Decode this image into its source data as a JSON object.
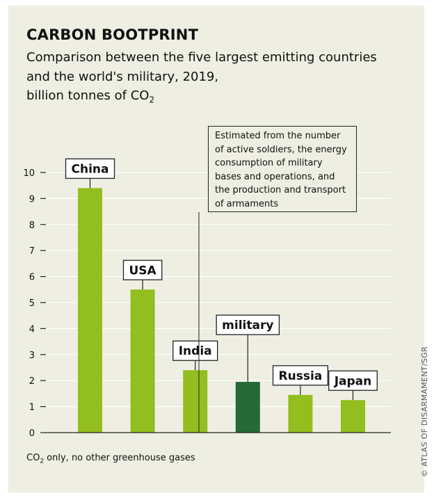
{
  "title": "CARBON BOOTPRINT",
  "subtitle_line1": "Comparison between the five largest emitting countries",
  "subtitle_line2": "and the world's military, 2019,",
  "subtitle_line3": "billion tonnes of CO",
  "subtitle_sub": "2",
  "annotation": "Estimated from the number of active soldiers, the energy consumption of military bases and operations, and the production and transport of armaments",
  "footnote_pre": "CO",
  "footnote_sub": "2",
  "footnote_post": " only, no other greenhouse gases",
  "copyright": "© ATLAS OF DISARMAMENT/SGR",
  "colors": {
    "country": "#93be1f",
    "military": "#256936",
    "background": "#eeeee2",
    "grid": "#ffffff"
  },
  "chart_data": {
    "type": "bar",
    "categories": [
      "China",
      "USA",
      "India",
      "military",
      "Russia",
      "Japan"
    ],
    "values": [
      9.4,
      5.5,
      2.4,
      1.95,
      1.45,
      1.25
    ],
    "highlight": [
      "country",
      "country",
      "country",
      "military",
      "country",
      "country"
    ],
    "yticks": [
      0,
      1,
      2,
      3,
      4,
      5,
      6,
      7,
      8,
      9,
      10
    ],
    "ylim": [
      0,
      10
    ],
    "grid": true
  }
}
